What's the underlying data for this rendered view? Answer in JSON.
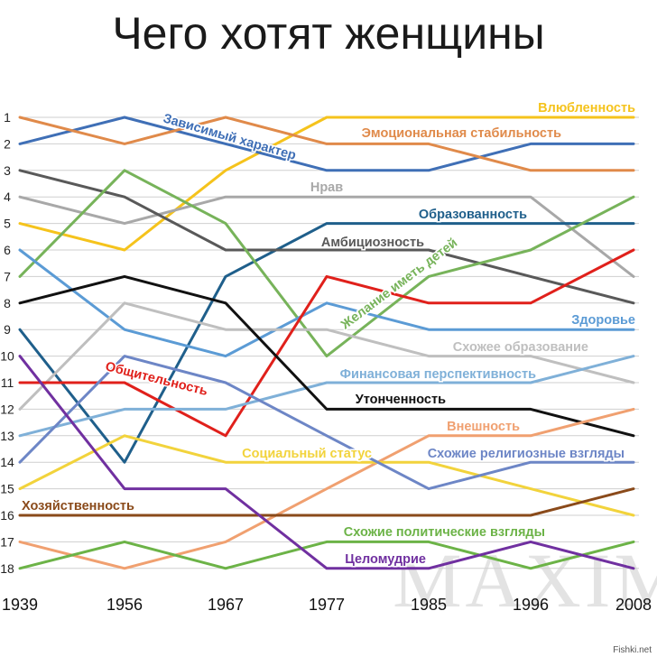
{
  "chart_data": {
    "type": "line",
    "title": "Чего хотят женщины",
    "xlabel": "",
    "ylabel": "",
    "x": [
      "1939",
      "1956",
      "1967",
      "1977",
      "1985",
      "1996",
      "2008"
    ],
    "y_ticks": [
      1,
      2,
      3,
      4,
      5,
      6,
      7,
      8,
      9,
      10,
      11,
      12,
      13,
      14,
      15,
      16,
      17,
      18
    ],
    "ylim": [
      1,
      18
    ],
    "y_inverted": true,
    "grid": true,
    "legend": "inline labels",
    "series": [
      {
        "name": "Влюбленность",
        "color": "#f5c31c",
        "values": [
          5,
          6,
          3,
          1,
          1,
          1,
          1
        ]
      },
      {
        "name": "Зависимый характер",
        "color": "#3f6fb6",
        "values": [
          2,
          1,
          2,
          3,
          3,
          2,
          2
        ]
      },
      {
        "name": "Эмоциональная стабильность",
        "color": "#e08a4a",
        "values": [
          1,
          2,
          1,
          2,
          2,
          3,
          3
        ]
      },
      {
        "name": "Нрав",
        "color": "#a8a8a8",
        "values": [
          4,
          5,
          4,
          4,
          4,
          4,
          7
        ]
      },
      {
        "name": "Образованность",
        "color": "#1f5f8b",
        "values": [
          9,
          14,
          7,
          5,
          5,
          5,
          5
        ]
      },
      {
        "name": "Амбициозность",
        "color": "#595959",
        "values": [
          3,
          4,
          6,
          6,
          6,
          7,
          8
        ]
      },
      {
        "name": "Желание иметь детей",
        "color": "#77b35a",
        "values": [
          7,
          3,
          5,
          10,
          7,
          6,
          4
        ]
      },
      {
        "name": "Здоровье",
        "color": "#5b9bd5",
        "values": [
          6,
          9,
          10,
          8,
          9,
          9,
          9
        ]
      },
      {
        "name": "Схожее образование",
        "color": "#bfbfbf",
        "values": [
          12,
          8,
          9,
          9,
          10,
          10,
          11
        ]
      },
      {
        "name": "Общительность",
        "color": "#e0201b",
        "values": [
          11,
          11,
          13,
          7,
          8,
          8,
          6
        ]
      },
      {
        "name": "Финансовая перспективность",
        "color": "#7fb0d8",
        "values": [
          13,
          12,
          12,
          11,
          11,
          11,
          10
        ]
      },
      {
        "name": "Утонченность",
        "color": "#111111",
        "values": [
          8,
          7,
          8,
          12,
          12,
          12,
          13
        ]
      },
      {
        "name": "Внешность",
        "color": "#f0a070",
        "values": [
          17,
          18,
          17,
          15,
          13,
          13,
          12
        ]
      },
      {
        "name": "Социальный статус",
        "color": "#f2d33c",
        "values": [
          15,
          13,
          14,
          14,
          14,
          15,
          16
        ]
      },
      {
        "name": "Схожие религиозные взгляды",
        "color": "#6d86c6",
        "values": [
          14,
          10,
          11,
          13,
          15,
          14,
          14
        ]
      },
      {
        "name": "Хозяйственность",
        "color": "#8a4a1a",
        "values": [
          16,
          16,
          16,
          16,
          16,
          16,
          15
        ]
      },
      {
        "name": "Схожие политические взгляды",
        "color": "#6cb347",
        "values": [
          18,
          17,
          18,
          17,
          17,
          18,
          17
        ]
      },
      {
        "name": "Целомудрие",
        "color": "#7030a0",
        "values": [
          10,
          15,
          15,
          18,
          18,
          17,
          18
        ]
      }
    ]
  },
  "watermark": "MAXIM",
  "credit": "Fishki.net"
}
